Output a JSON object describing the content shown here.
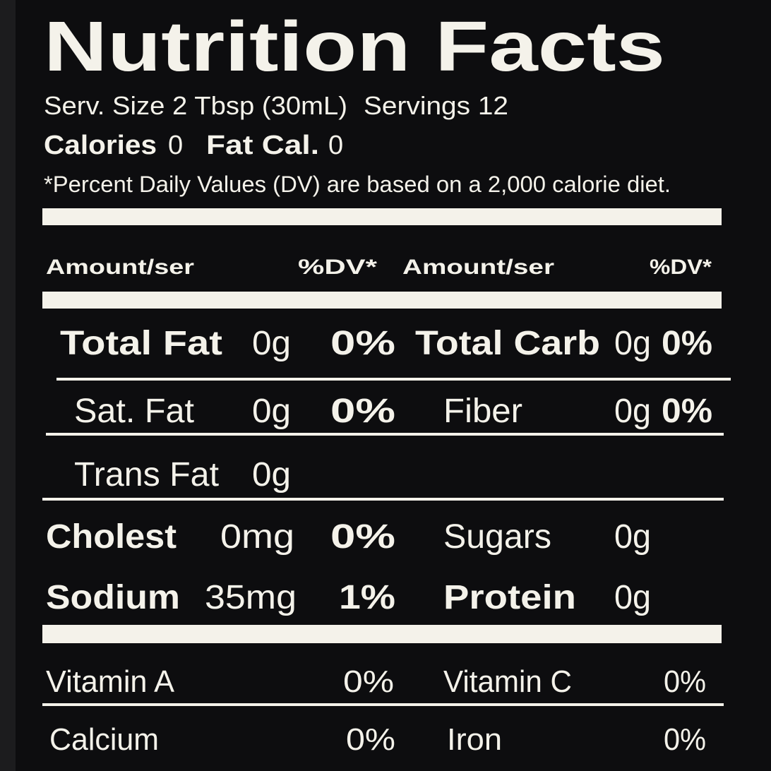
{
  "title": "Nutrition Facts",
  "serving": {
    "size": "Serv. Size 2 Tbsp (30mL)",
    "servings": "Servings 12"
  },
  "calories": {
    "label": "Calories",
    "value": "0",
    "fat_label": "Fat Cal.",
    "fat_value": "0"
  },
  "note": "*Percent Daily Values (DV) are based on a 2,000 calorie diet.",
  "header": [
    "Amount/ser",
    "%DV*",
    "Amount/ser",
    "%DV*"
  ],
  "rows": [
    [
      "Total Fat",
      "0g",
      "0%",
      "Total Carb",
      "0g",
      "0%"
    ],
    [
      "Sat. Fat",
      "0g",
      "0%",
      "Fiber",
      "0g",
      "0%"
    ],
    [
      "Trans Fat",
      "0g"
    ],
    [
      "Cholest",
      "0mg",
      "0%",
      "Sugars",
      "0g"
    ],
    [
      "Sodium",
      "35mg",
      "1%",
      "Protein",
      "0g"
    ]
  ],
  "vitamins": [
    [
      "Vitamin A",
      "0%",
      "Vitamin C",
      "0%"
    ],
    [
      "Calcium",
      "0%",
      "Iron",
      "0%"
    ]
  ]
}
